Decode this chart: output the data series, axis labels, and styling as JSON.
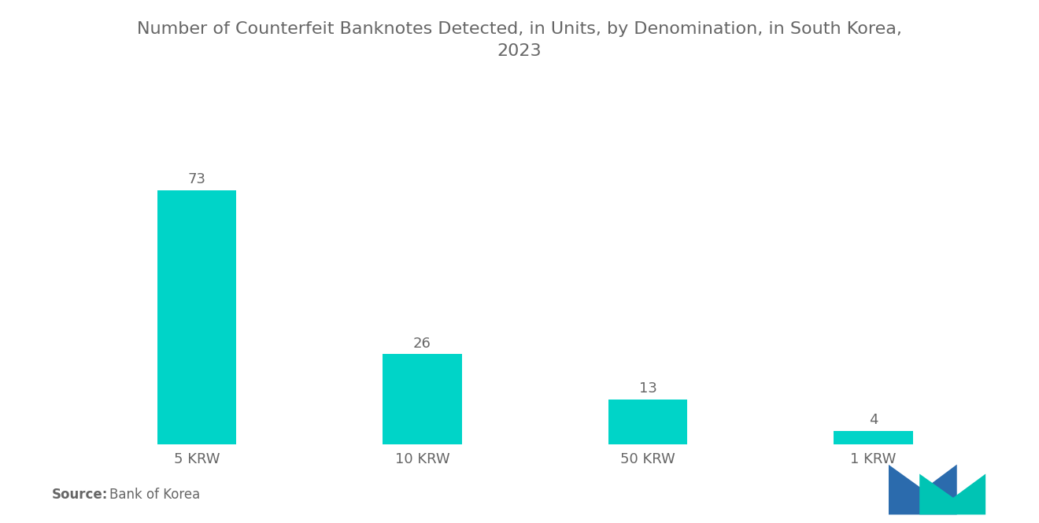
{
  "title": "Number of Counterfeit Banknotes Detected, in Units, by Denomination, in South Korea,\n2023",
  "categories": [
    "5 KRW",
    "10 KRW",
    "50 KRW",
    "1 KRW"
  ],
  "values": [
    73,
    26,
    13,
    4
  ],
  "bar_color": "#00D4C8",
  "background_color": "#ffffff",
  "text_color": "#666666",
  "source_label": "Source:",
  "source_text": "  Bank of Korea",
  "title_fontsize": 16,
  "label_fontsize": 13,
  "value_fontsize": 13,
  "source_fontsize": 12,
  "ylim": [
    0,
    90
  ],
  "bar_width": 0.35,
  "logo_blue": "#2B6BAD",
  "logo_teal": "#00C4B4"
}
